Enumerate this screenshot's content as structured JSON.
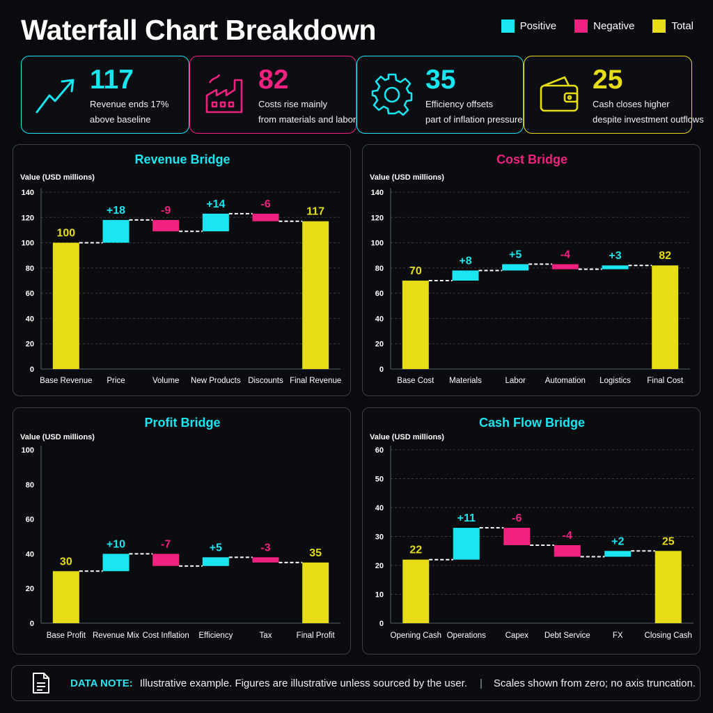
{
  "title": "Waterfall Chart Breakdown",
  "legend": [
    {
      "label": "Positive",
      "color": "#19e6f0"
    },
    {
      "label": "Negative",
      "color": "#f0217f"
    },
    {
      "label": "Total",
      "color": "#e6dd16"
    }
  ],
  "kpis": [
    {
      "icon": "trend-up-icon",
      "value": "117",
      "line1": "Revenue ends 17%",
      "line2": "above baseline",
      "color": "#19e6f0"
    },
    {
      "icon": "factory-icon",
      "value": "82",
      "line1": "Costs rise mainly",
      "line2": "from materials and labor",
      "color": "#f0217f"
    },
    {
      "icon": "gear-icon",
      "value": "35",
      "line1": "Efficiency offsets",
      "line2": "part of inflation pressure",
      "color": "#19e6f0"
    },
    {
      "icon": "wallet-icon",
      "value": "25",
      "line1": "Cash closes higher",
      "line2": "despite investment outflows",
      "color": "#e6dd16"
    }
  ],
  "chart_data": [
    {
      "type": "bar",
      "title": "Revenue Bridge",
      "ylabel": "Value (USD millions)",
      "ylim": [
        0,
        140
      ],
      "yticks": [
        0,
        20,
        40,
        60,
        80,
        100,
        120,
        140
      ],
      "grid": true,
      "steps": [
        {
          "category": "Base Revenue",
          "kind": "total",
          "value": 100,
          "label": "100"
        },
        {
          "category": "Price",
          "kind": "delta",
          "value": 18,
          "label": "+18"
        },
        {
          "category": "Volume",
          "kind": "delta",
          "value": -9,
          "label": "-9"
        },
        {
          "category": "New Products",
          "kind": "delta",
          "value": 14,
          "label": "+14"
        },
        {
          "category": "Discounts",
          "kind": "delta",
          "value": -6,
          "label": "-6"
        },
        {
          "category": "Final Revenue",
          "kind": "total",
          "value": 117,
          "label": "117"
        }
      ]
    },
    {
      "type": "bar",
      "title": "Cost Bridge",
      "ylabel": "Value (USD millions)",
      "ylim": [
        0,
        140
      ],
      "yticks": [
        0,
        20,
        40,
        60,
        80,
        100,
        120,
        140
      ],
      "grid": true,
      "steps": [
        {
          "category": "Base Cost",
          "kind": "total",
          "value": 70,
          "label": "70"
        },
        {
          "category": "Materials",
          "kind": "delta",
          "value": 8,
          "label": "+8"
        },
        {
          "category": "Labor",
          "kind": "delta",
          "value": 5,
          "label": "+5"
        },
        {
          "category": "Automation",
          "kind": "delta",
          "value": -4,
          "label": "-4"
        },
        {
          "category": "Logistics",
          "kind": "delta",
          "value": 3,
          "label": "+3"
        },
        {
          "category": "Final Cost",
          "kind": "total",
          "value": 82,
          "label": "82"
        }
      ]
    },
    {
      "type": "bar",
      "title": "Profit Bridge",
      "ylabel": "Value (USD millions)",
      "ylim": [
        0,
        100
      ],
      "yticks": [
        0,
        20,
        40,
        60,
        80,
        100
      ],
      "grid": false,
      "steps": [
        {
          "category": "Base Profit",
          "kind": "total",
          "value": 30,
          "label": "30"
        },
        {
          "category": "Revenue Mix",
          "kind": "delta",
          "value": 10,
          "label": "+10"
        },
        {
          "category": "Cost Inflation",
          "kind": "delta",
          "value": -7,
          "label": "-7"
        },
        {
          "category": "Efficiency",
          "kind": "delta",
          "value": 5,
          "label": "+5"
        },
        {
          "category": "Tax",
          "kind": "delta",
          "value": -3,
          "label": "-3"
        },
        {
          "category": "Final Profit",
          "kind": "total",
          "value": 35,
          "label": "35"
        }
      ]
    },
    {
      "type": "bar",
      "title": "Cash Flow Bridge",
      "ylabel": "Value (USD millions)",
      "ylim": [
        0,
        60
      ],
      "yticks": [
        0,
        10,
        20,
        30,
        40,
        50,
        60
      ],
      "grid": true,
      "steps": [
        {
          "category": "Opening Cash",
          "kind": "total",
          "value": 22,
          "label": "22"
        },
        {
          "category": "Operations",
          "kind": "delta",
          "value": 11,
          "label": "+11"
        },
        {
          "category": "Capex",
          "kind": "delta",
          "value": -6,
          "label": "-6"
        },
        {
          "category": "Debt Service",
          "kind": "delta",
          "value": -4,
          "label": "-4"
        },
        {
          "category": "FX",
          "kind": "delta",
          "value": 2,
          "label": "+2"
        },
        {
          "category": "Closing Cash",
          "kind": "total",
          "value": 25,
          "label": "25"
        }
      ]
    }
  ],
  "note": {
    "label": "DATA NOTE:",
    "text": "Illustrative example. Figures are illustrative unless sourced by the user.",
    "separator": "|",
    "text2": "Scales shown from zero; no axis truncation."
  }
}
